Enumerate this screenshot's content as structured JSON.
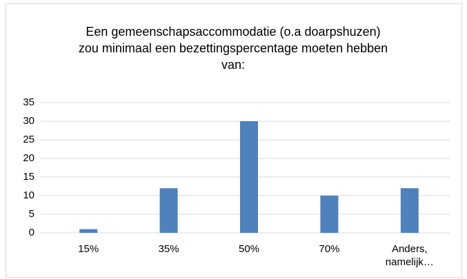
{
  "chart_data": {
    "type": "bar",
    "title": "Een gemeenschapsaccommodatie (o.a doarpshuzen) zou minimaal een bezettingspercentage moeten hebben van:",
    "categories": [
      "15%",
      "35%",
      "50%",
      "70%",
      "Anders, namelijk…"
    ],
    "values": [
      1,
      12,
      30,
      10,
      12
    ],
    "color": "#4f81bd",
    "ylim": [
      0,
      35
    ],
    "yticks": [
      0,
      5,
      10,
      15,
      20,
      25,
      30,
      35
    ],
    "grid": true
  }
}
